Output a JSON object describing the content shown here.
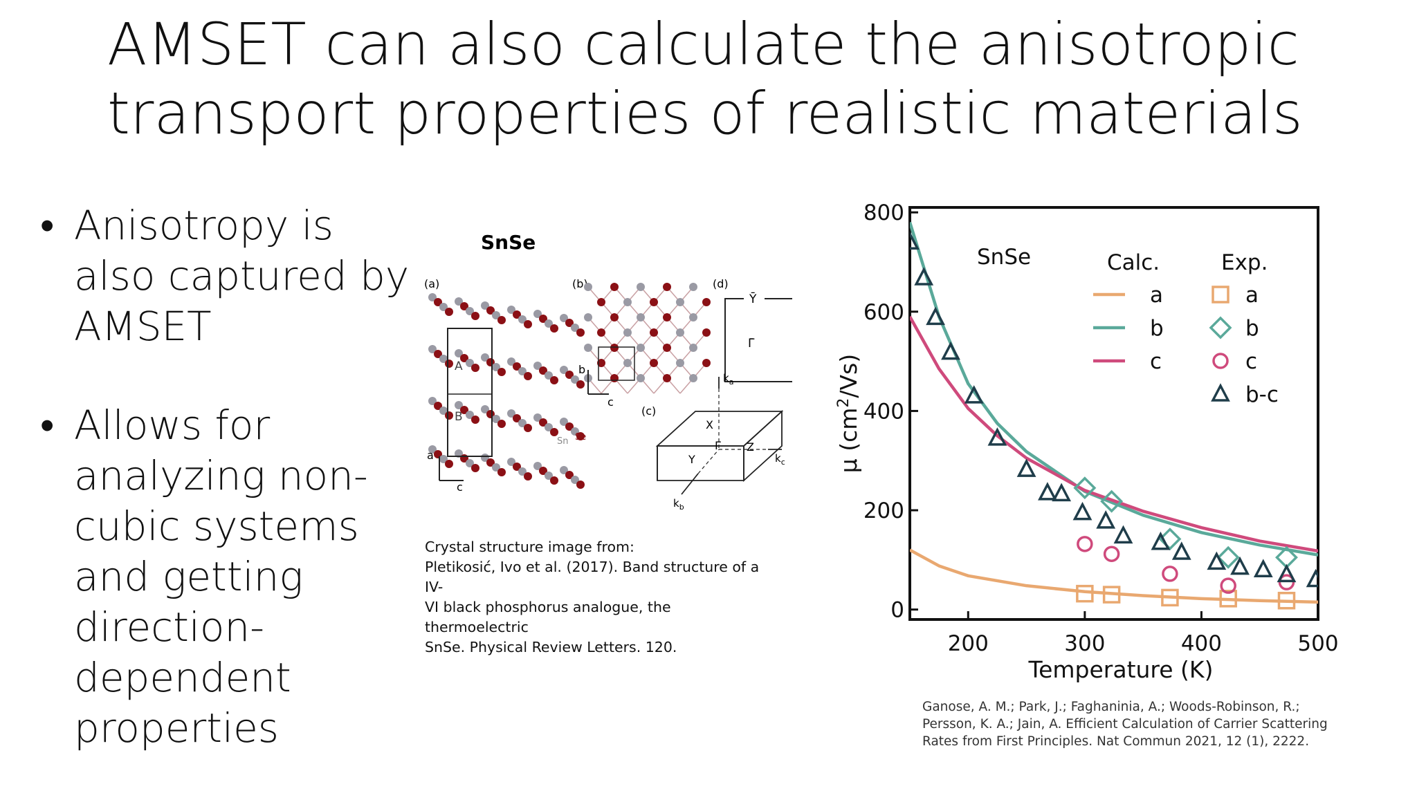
{
  "slide": {
    "title_lines": [
      "AMSET can also calculate the anisotropic",
      "transport properties of realistic materials"
    ],
    "bullets": [
      [
        "Anisotropy is",
        "also captured by",
        "AMSET"
      ],
      [
        "Allows for",
        "analyzing non-",
        "cubic systems",
        "and getting",
        "direction-",
        "dependent",
        "properties"
      ]
    ],
    "bullet_symbol": "•"
  },
  "crystal_figure": {
    "title": "SnSe",
    "panel_labels": [
      "(a)",
      "(b)",
      "(c)",
      "(d)"
    ],
    "layer_labels": [
      "A",
      "B"
    ],
    "element_labels": [
      "Sn",
      "Se"
    ],
    "axis_labels_a": [
      "a",
      "c"
    ],
    "axis_labels_b": [
      "b",
      "c"
    ],
    "bz_labels": [
      "Ȳ",
      "Γ̄",
      "Z̄"
    ],
    "bz3d_labels": [
      "X",
      "Y",
      "Γ",
      "Z"
    ],
    "k_labels": [
      "ka",
      "kb",
      "kc"
    ],
    "k_base": "k",
    "k_subs": [
      "a",
      "b",
      "c"
    ],
    "colors": {
      "sn": "#9a9aa4",
      "se": "#8b1015"
    }
  },
  "captions": {
    "left": [
      "Crystal structure image from:",
      "Pletikosić, Ivo et al. (2017). Band structure of a IV-",
      "VI black phosphorus analogue, the thermoelectric",
      "SnSe. Physical Review Letters. 120."
    ],
    "right": [
      "Ganose, A. M.; Park, J.; Faghaninia, A.; Woods-Robinson, R.;",
      "Persson, K. A.; Jain, A. Efficient Calculation of Carrier Scattering",
      "Rates from First Principles. Nat Commun 2021, 12 (1), 2222."
    ]
  },
  "chart_data": {
    "type": "line",
    "title": "",
    "inset_label": "SnSe",
    "xlabel": "Temperature (K)",
    "ylabel": "μ (cm²/Vs)",
    "ylabel_parts": {
      "pre": "μ (cm",
      "sup": "2",
      "post": "/Vs)"
    },
    "xlim": [
      150,
      500
    ],
    "ylim": [
      -20,
      810
    ],
    "xticks": [
      200,
      300,
      400,
      500
    ],
    "yticks": [
      0,
      200,
      400,
      600,
      800
    ],
    "grid": false,
    "legend": {
      "placement": "top-right",
      "calc_header": "Calc.",
      "exp_header": "Exp.",
      "calc_entries": [
        "a",
        "b",
        "c"
      ],
      "exp_entries": [
        "a",
        "b",
        "c",
        "b-c"
      ]
    },
    "colors": {
      "a": "#e9a870",
      "b": "#5aa99a",
      "c": "#cf4a7c",
      "bc": "#1f3d4a"
    },
    "calc_series": [
      {
        "name": "a",
        "x": [
          150,
          175,
          200,
          250,
          300,
          350,
          400,
          450,
          500
        ],
        "values": [
          120,
          88,
          68,
          48,
          36,
          28,
          22,
          18,
          15
        ]
      },
      {
        "name": "b",
        "x": [
          150,
          175,
          200,
          225,
          250,
          300,
          350,
          400,
          450,
          500
        ],
        "values": [
          780,
          590,
          455,
          375,
          318,
          238,
          190,
          155,
          130,
          110
        ]
      },
      {
        "name": "c",
        "x": [
          150,
          175,
          200,
          225,
          250,
          300,
          350,
          400,
          450,
          500
        ],
        "values": [
          590,
          485,
          405,
          350,
          305,
          240,
          198,
          165,
          138,
          118
        ]
      }
    ],
    "exp_series": [
      {
        "name": "a",
        "marker": "square",
        "x": [
          300,
          323,
          373,
          423,
          473
        ],
        "values": [
          32,
          30,
          24,
          22,
          18
        ]
      },
      {
        "name": "b",
        "marker": "diamond",
        "x": [
          300,
          323,
          373,
          423,
          473
        ],
        "values": [
          245,
          218,
          142,
          105,
          105
        ]
      },
      {
        "name": "c",
        "marker": "circle",
        "x": [
          300,
          323,
          373,
          423,
          473
        ],
        "values": [
          132,
          112,
          72,
          48,
          55
        ]
      },
      {
        "name": "b-c",
        "marker": "triangle",
        "x": [
          150,
          162,
          172,
          185,
          205,
          225,
          250,
          268,
          280,
          298,
          318,
          333,
          365,
          383,
          413,
          433,
          453,
          473,
          498
        ],
        "values": [
          740,
          668,
          588,
          518,
          430,
          345,
          282,
          235,
          233,
          195,
          178,
          148,
          135,
          115,
          95,
          85,
          80,
          70,
          60
        ]
      }
    ]
  }
}
